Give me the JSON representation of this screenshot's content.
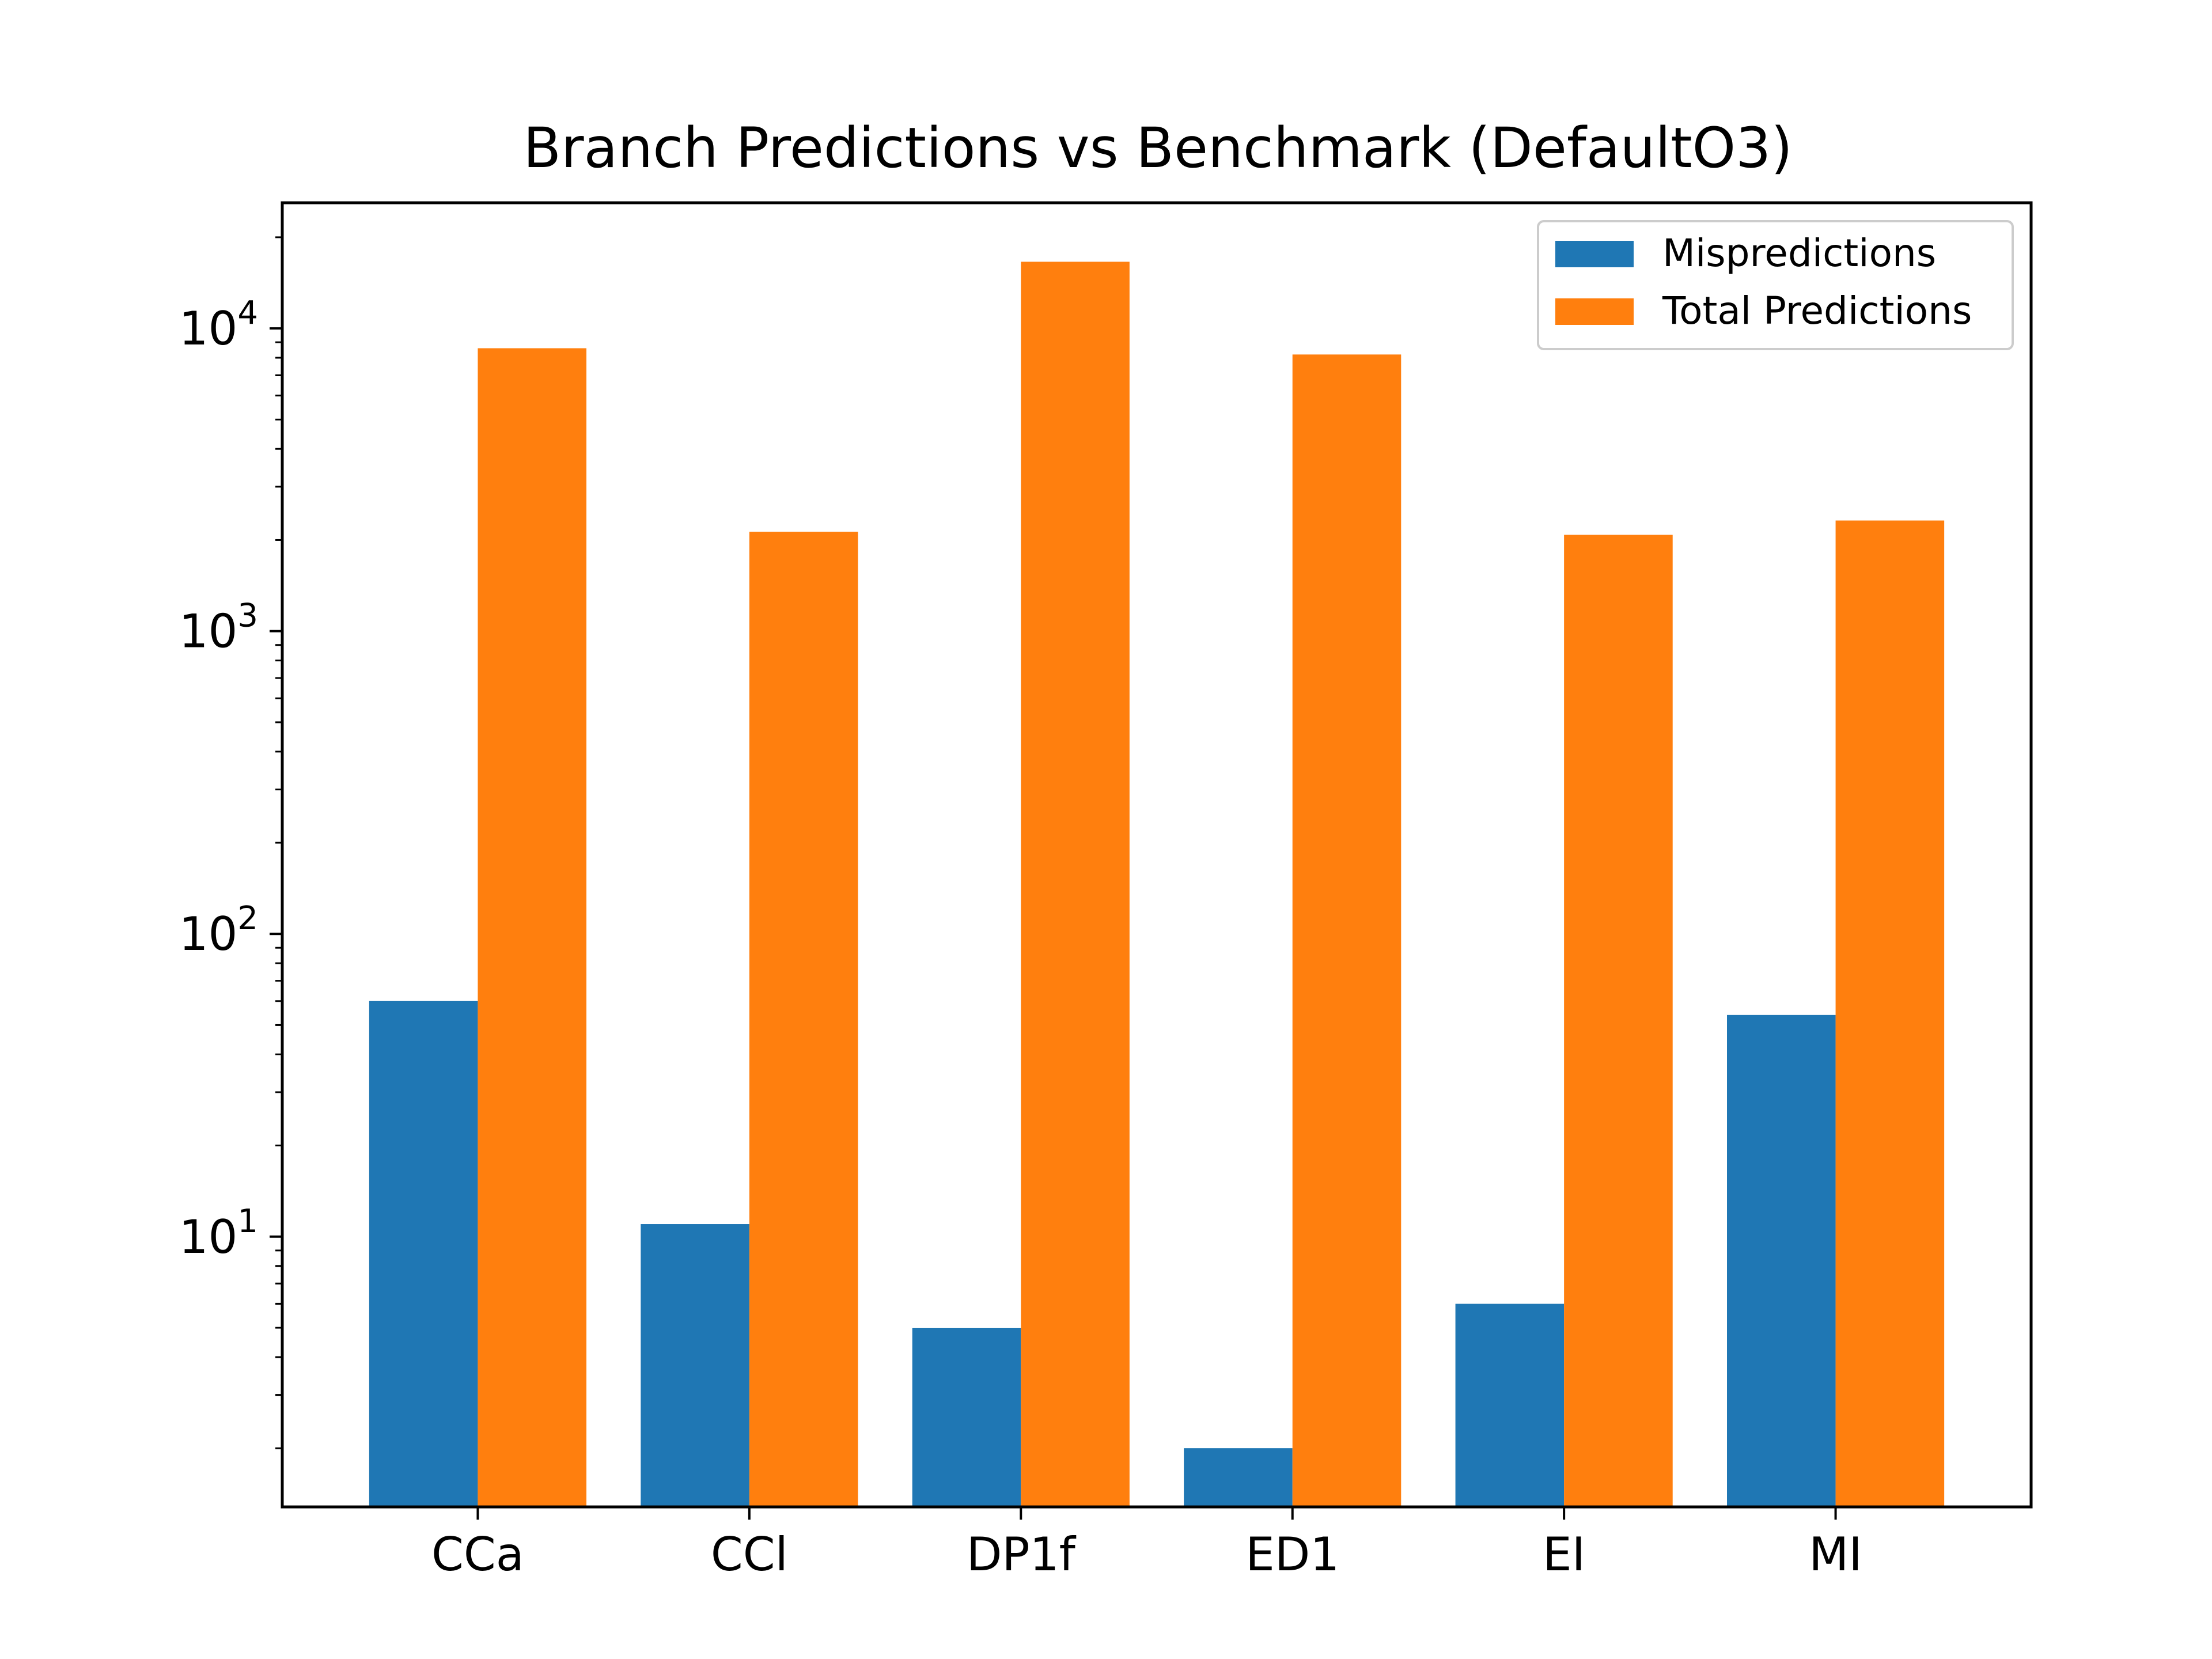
{
  "chart_data": {
    "type": "bar",
    "title": "Branch Predictions vs Benchmark (DefaultO3)",
    "xlabel": "",
    "ylabel": "",
    "yscale": "log",
    "ylim": [
      1.28,
      26000
    ],
    "grid": false,
    "legend_position": "top-right",
    "categories": [
      "CCa",
      "CCl",
      "DP1f",
      "ED1",
      "EI",
      "MI"
    ],
    "series": [
      {
        "name": "Mispredictions",
        "color": "#1f77b4",
        "values": [
          60,
          11,
          5,
          2,
          6,
          54
        ]
      },
      {
        "name": "Total Predictions",
        "color": "#ff7f0e",
        "values": [
          8600,
          2130,
          16600,
          8200,
          2080,
          2320
        ]
      }
    ],
    "y_ticks": [
      {
        "base": "10",
        "exp": "1",
        "value": 10
      },
      {
        "base": "10",
        "exp": "2",
        "value": 100
      },
      {
        "base": "10",
        "exp": "3",
        "value": 1000
      },
      {
        "base": "10",
        "exp": "4",
        "value": 10000
      }
    ]
  }
}
